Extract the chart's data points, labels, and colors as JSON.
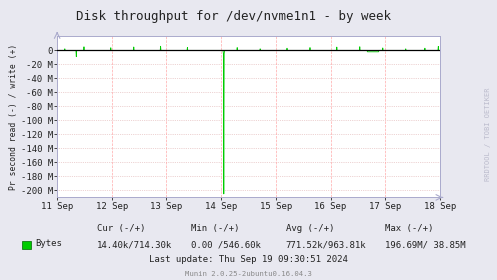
{
  "title": "Disk throughput for /dev/nvme1n1 - by week",
  "ylabel": "Pr second read (-) / write (+)",
  "background_color": "#e8e8f0",
  "plot_bg_color": "#ffffff",
  "grid_color_h": "#ddaaaa",
  "grid_color_v": "#ffaaaa",
  "line_color": "#00cc00",
  "zero_line_color": "#000000",
  "ylim_min": -210,
  "ylim_max": 20,
  "ytick_vals": [
    0,
    -20,
    -40,
    -60,
    -80,
    -100,
    -120,
    -140,
    -160,
    -180,
    -200
  ],
  "ytick_labels": [
    "0",
    "-20 M",
    "-40 M",
    "-60 M",
    "-80 M",
    "-100 M",
    "-120 M",
    "-140 M",
    "-160 M",
    "-180 M",
    "-200 M"
  ],
  "xtick_labels": [
    "11 Sep",
    "12 Sep",
    "13 Sep",
    "14 Sep",
    "15 Sep",
    "16 Sep",
    "17 Sep",
    "18 Sep"
  ],
  "legend_color": "#00cc00",
  "last_update": "Last update: Thu Sep 19 09:30:51 2024",
  "munin_label": "Munin 2.0.25-2ubuntu0.16.04.3",
  "watermark": "RRDTOOL / TOBI OETIKER",
  "title_fontsize": 9,
  "axis_fontsize": 6.5,
  "stats_fontsize": 6.5,
  "border_color": "#aaaacc",
  "arrow_color": "#aaaacc",
  "cur_label": "Cur (-/+)",
  "min_label": "Min (-/+)",
  "avg_label": "Avg (-/+)",
  "max_label": "Max (-/+)",
  "cur_val": "14.40k/714.30k",
  "min_val": "0.00 /546.60k",
  "avg_val": "771.52k/963.81k",
  "max_val": "196.69M/ 38.85M",
  "bytes_label": "Bytes"
}
